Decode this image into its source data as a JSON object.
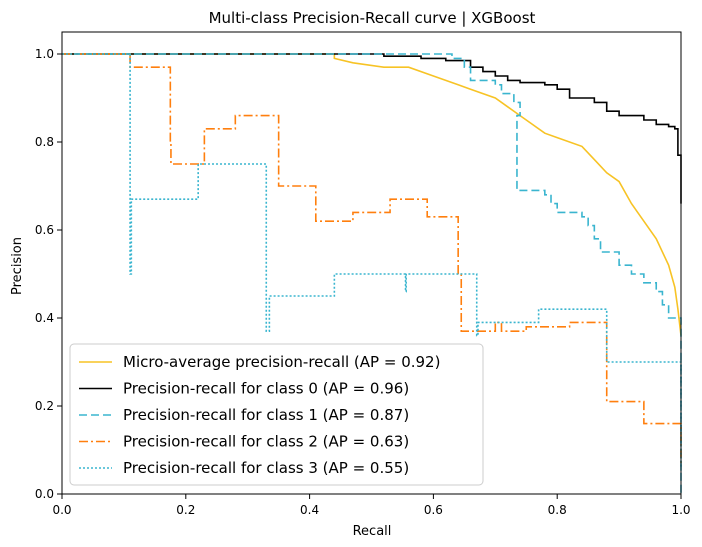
{
  "chart_data": {
    "type": "line",
    "title": "Multi-class Precision-Recall curve | XGBoost",
    "xlabel": "Recall",
    "ylabel": "Precision",
    "xlim": [
      0.0,
      1.0
    ],
    "ylim": [
      0.0,
      1.05
    ],
    "xticks": [
      0.0,
      0.2,
      0.4,
      0.6,
      0.8,
      1.0
    ],
    "xtick_labels": [
      "0.0",
      "0.2",
      "0.4",
      "0.6",
      "0.8",
      "1.0"
    ],
    "yticks": [
      0.0,
      0.2,
      0.4,
      0.6,
      0.8,
      1.0
    ],
    "ytick_labels": [
      "0.0",
      "0.2",
      "0.4",
      "0.6",
      "0.8",
      "1.0"
    ],
    "grid": false,
    "legend_position": "lower-left",
    "series": [
      {
        "name": "Micro-average precision-recall (AP = 0.92)",
        "color": "#f7c325",
        "dash": "solid",
        "step": false,
        "points": [
          [
            0.0,
            1.0
          ],
          [
            0.44,
            1.0
          ],
          [
            0.44,
            0.99
          ],
          [
            0.47,
            0.98
          ],
          [
            0.52,
            0.97
          ],
          [
            0.56,
            0.97
          ],
          [
            0.6,
            0.95
          ],
          [
            0.62,
            0.94
          ],
          [
            0.64,
            0.93
          ],
          [
            0.66,
            0.92
          ],
          [
            0.7,
            0.9
          ],
          [
            0.72,
            0.88
          ],
          [
            0.74,
            0.86
          ],
          [
            0.76,
            0.84
          ],
          [
            0.78,
            0.82
          ],
          [
            0.8,
            0.81
          ],
          [
            0.84,
            0.79
          ],
          [
            0.86,
            0.76
          ],
          [
            0.88,
            0.73
          ],
          [
            0.9,
            0.71
          ],
          [
            0.92,
            0.66
          ],
          [
            0.94,
            0.62
          ],
          [
            0.96,
            0.58
          ],
          [
            0.98,
            0.52
          ],
          [
            0.99,
            0.47
          ],
          [
            0.995,
            0.42
          ],
          [
            1.0,
            0.36
          ]
        ]
      },
      {
        "name": "Precision-recall for class 0 (AP = 0.96)",
        "color": "#000000",
        "dash": "solid",
        "step": true,
        "points": [
          [
            0.0,
            1.0
          ],
          [
            0.5,
            1.0
          ],
          [
            0.52,
            0.995
          ],
          [
            0.58,
            0.99
          ],
          [
            0.62,
            0.985
          ],
          [
            0.66,
            0.97
          ],
          [
            0.68,
            0.96
          ],
          [
            0.7,
            0.95
          ],
          [
            0.72,
            0.94
          ],
          [
            0.74,
            0.935
          ],
          [
            0.78,
            0.93
          ],
          [
            0.8,
            0.92
          ],
          [
            0.82,
            0.9
          ],
          [
            0.86,
            0.89
          ],
          [
            0.88,
            0.87
          ],
          [
            0.9,
            0.86
          ],
          [
            0.94,
            0.85
          ],
          [
            0.96,
            0.84
          ],
          [
            0.98,
            0.835
          ],
          [
            0.99,
            0.83
          ],
          [
            0.995,
            0.77
          ],
          [
            1.0,
            0.66
          ]
        ]
      },
      {
        "name": "Precision-recall for class 1 (AP = 0.87)",
        "color": "#3ab5cf",
        "dash": "8,4",
        "step": true,
        "points": [
          [
            0.0,
            1.0
          ],
          [
            0.63,
            1.0
          ],
          [
            0.63,
            0.99
          ],
          [
            0.65,
            0.97
          ],
          [
            0.66,
            0.94
          ],
          [
            0.7,
            0.93
          ],
          [
            0.71,
            0.91
          ],
          [
            0.73,
            0.89
          ],
          [
            0.74,
            0.86
          ],
          [
            0.735,
            0.69
          ],
          [
            0.78,
            0.68
          ],
          [
            0.79,
            0.66
          ],
          [
            0.8,
            0.64
          ],
          [
            0.84,
            0.63
          ],
          [
            0.85,
            0.61
          ],
          [
            0.86,
            0.58
          ],
          [
            0.87,
            0.55
          ],
          [
            0.9,
            0.52
          ],
          [
            0.92,
            0.5
          ],
          [
            0.94,
            0.48
          ],
          [
            0.96,
            0.46
          ],
          [
            0.97,
            0.43
          ],
          [
            0.98,
            0.4
          ],
          [
            1.0,
            0.39
          ],
          [
            1.0,
            0.0
          ]
        ]
      },
      {
        "name": "Precision-recall for class 2 (AP = 0.63)",
        "color": "#ff7f0e",
        "dash": "9,3,2,3",
        "step": true,
        "points": [
          [
            0.0,
            1.0
          ],
          [
            0.11,
            1.0
          ],
          [
            0.11,
            0.97
          ],
          [
            0.175,
            0.97
          ],
          [
            0.175,
            0.8
          ],
          [
            0.176,
            0.75
          ],
          [
            0.23,
            0.83
          ],
          [
            0.28,
            0.83
          ],
          [
            0.28,
            0.86
          ],
          [
            0.35,
            0.86
          ],
          [
            0.35,
            0.7
          ],
          [
            0.41,
            0.7
          ],
          [
            0.41,
            0.62
          ],
          [
            0.47,
            0.62
          ],
          [
            0.47,
            0.64
          ],
          [
            0.53,
            0.64
          ],
          [
            0.53,
            0.67
          ],
          [
            0.59,
            0.67
          ],
          [
            0.59,
            0.63
          ],
          [
            0.64,
            0.63
          ],
          [
            0.64,
            0.5
          ],
          [
            0.645,
            0.37
          ],
          [
            0.7,
            0.39
          ],
          [
            0.71,
            0.37
          ],
          [
            0.75,
            0.37
          ],
          [
            0.75,
            0.38
          ],
          [
            0.82,
            0.39
          ],
          [
            0.88,
            0.39
          ],
          [
            0.88,
            0.21
          ],
          [
            0.94,
            0.21
          ],
          [
            0.94,
            0.16
          ],
          [
            0.98,
            0.16
          ],
          [
            1.0,
            0.16
          ],
          [
            1.0,
            0.07
          ]
        ]
      },
      {
        "name": "Precision-recall for class 3 (AP = 0.55)",
        "color": "#3ab5cf",
        "dash": "2,2",
        "step": true,
        "points": [
          [
            0.0,
            1.0
          ],
          [
            0.11,
            1.0
          ],
          [
            0.11,
            0.5
          ],
          [
            0.112,
            0.67
          ],
          [
            0.22,
            0.67
          ],
          [
            0.22,
            0.75
          ],
          [
            0.33,
            0.75
          ],
          [
            0.33,
            0.37
          ],
          [
            0.335,
            0.45
          ],
          [
            0.44,
            0.45
          ],
          [
            0.44,
            0.5
          ],
          [
            0.55,
            0.5
          ],
          [
            0.555,
            0.46
          ],
          [
            0.556,
            0.5
          ],
          [
            0.67,
            0.5
          ],
          [
            0.67,
            0.36
          ],
          [
            0.672,
            0.39
          ],
          [
            0.77,
            0.39
          ],
          [
            0.77,
            0.42
          ],
          [
            0.88,
            0.42
          ],
          [
            0.88,
            0.3
          ],
          [
            1.0,
            0.3
          ],
          [
            1.0,
            0.05
          ]
        ]
      }
    ]
  }
}
